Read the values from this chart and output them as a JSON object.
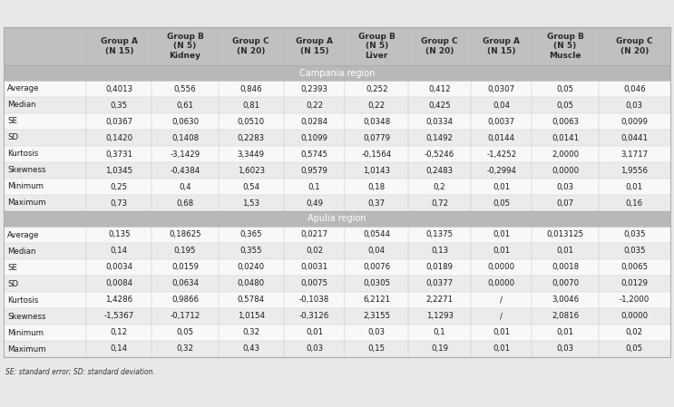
{
  "col_headers": [
    "Group A\n(N 15)",
    "Group B\n(N 5)\nKidney",
    "Group C\n(N 20)",
    "Group A\n(N 15)",
    "Group B\n(N 5)\nLiver",
    "Group C\n(N 20)",
    "Group A\n(N 15)",
    "Group B\n(N 5)\nMuscle",
    "Group C\n(N 20)"
  ],
  "row_labels": [
    "Average",
    "Median",
    "SE",
    "SD",
    "Kurtosis",
    "Skewness",
    "Minimum",
    "Maximum"
  ],
  "section_campania": "Campania region",
  "section_apulia": "Apulia region",
  "campania_data": [
    [
      "0,4013",
      "0,556",
      "0,846",
      "0,2393",
      "0,252",
      "0,412",
      "0,0307",
      "0,05",
      "0,046"
    ],
    [
      "0,35",
      "0,61",
      "0,81",
      "0,22",
      "0,22",
      "0,425",
      "0,04",
      "0,05",
      "0,03"
    ],
    [
      "0,0367",
      "0,0630",
      "0,0510",
      "0,0284",
      "0,0348",
      "0,0334",
      "0,0037",
      "0,0063",
      "0,0099"
    ],
    [
      "0,1420",
      "0,1408",
      "0,2283",
      "0,1099",
      "0,0779",
      "0,1492",
      "0,0144",
      "0,0141",
      "0,0441"
    ],
    [
      "0,3731",
      "-3,1429",
      "3,3449",
      "0,5745",
      "-0,1564",
      "-0,5246",
      "-1,4252",
      "2,0000",
      "3,1717"
    ],
    [
      "1,0345",
      "-0,4384",
      "1,6023",
      "0,9579",
      "1,0143",
      "0,2483",
      "-0,2994",
      "0,0000",
      "1,9556"
    ],
    [
      "0,25",
      "0,4",
      "0,54",
      "0,1",
      "0,18",
      "0,2",
      "0,01",
      "0,03",
      "0,01"
    ],
    [
      "0,73",
      "0,68",
      "1,53",
      "0,49",
      "0,37",
      "0,72",
      "0,05",
      "0,07",
      "0,16"
    ]
  ],
  "apulia_data": [
    [
      "0,135",
      "0,18625",
      "0,365",
      "0,0217",
      "0,0544",
      "0,1375",
      "0,01",
      "0,013125",
      "0,035"
    ],
    [
      "0,14",
      "0,195",
      "0,355",
      "0,02",
      "0,04",
      "0,13",
      "0,01",
      "0,01",
      "0,035"
    ],
    [
      "0,0034",
      "0,0159",
      "0,0240",
      "0,0031",
      "0,0076",
      "0,0189",
      "0,0000",
      "0,0018",
      "0,0065"
    ],
    [
      "0,0084",
      "0,0634",
      "0,0480",
      "0,0075",
      "0,0305",
      "0,0377",
      "0,0000",
      "0,0070",
      "0,0129"
    ],
    [
      "1,4286",
      "0,9866",
      "0,5784",
      "-0,1038",
      "6,2121",
      "2,2271",
      "/",
      "3,0046",
      "-1,2000"
    ],
    [
      "-1,5367",
      "-0,1712",
      "1,0154",
      "-0,3126",
      "2,3155",
      "1,1293",
      "/",
      "2,0816",
      "0,0000"
    ],
    [
      "0,12",
      "0,05",
      "0,32",
      "0,01",
      "0,03",
      "0,1",
      "0,01",
      "0,01",
      "0,02"
    ],
    [
      "0,14",
      "0,32",
      "0,43",
      "0,03",
      "0,15",
      "0,19",
      "0,01",
      "0,03",
      "0,05"
    ]
  ],
  "footer": "SE: standard error; SD: standard deviation.",
  "header_bg": "#c0c0c0",
  "header_text_color": "#2a2a2a",
  "section_bg": "#b8b8b8",
  "section_text_color": "#ffffff",
  "row_bg_even": "#ebebeb",
  "row_bg_odd": "#f8f8f8",
  "border_color": "#aaaaaa",
  "text_color": "#1a1a1a",
  "outer_bg": "#e8e8e8",
  "font_size": 6.2,
  "header_font_size": 6.5
}
